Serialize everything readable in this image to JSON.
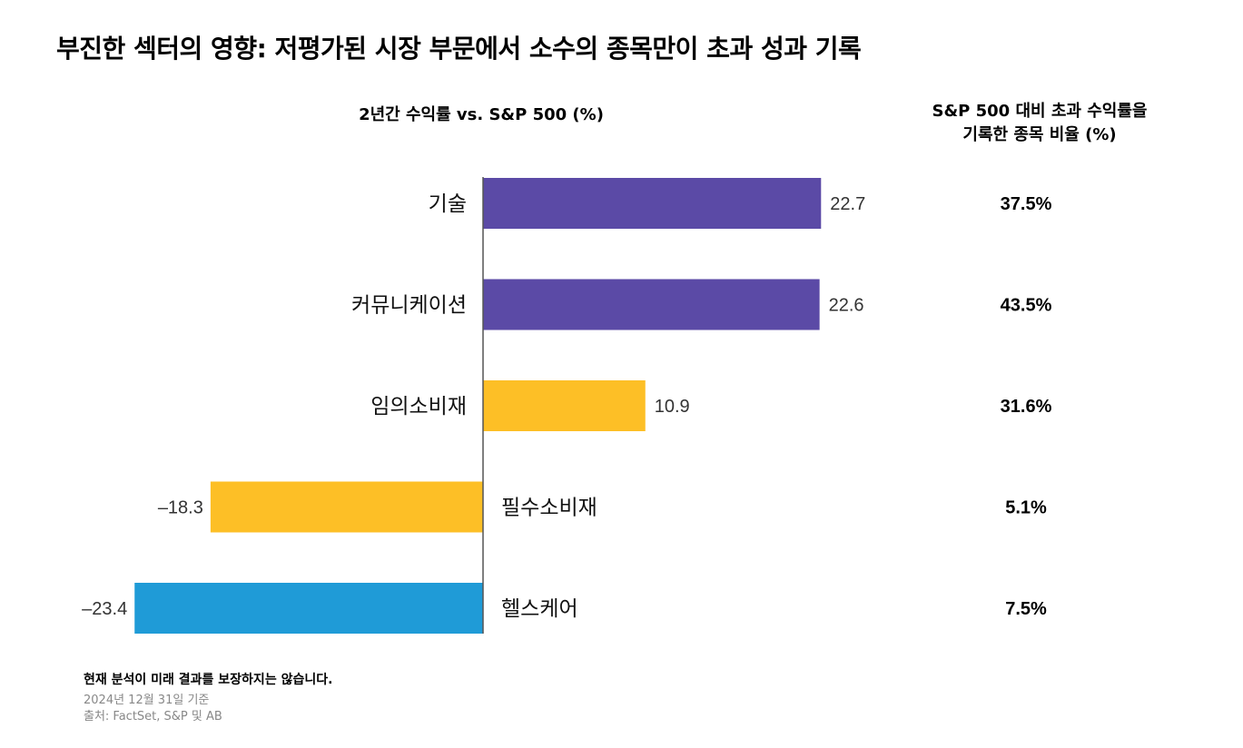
{
  "title": "부진한 섹터의 영향: 저평가된 시장 부문에서 소수의 종목만이 초과 성과 기록",
  "footnote": "현재 분석이 미래 결과를 보장하지는 않습니다.",
  "as_of": "2024년 12월 31일 기준",
  "source": "출처: FactSet, S&P 및 AB",
  "colors": {
    "purple": "#5b4aa6",
    "yellow": "#fdbf26",
    "blue": "#1f9bd7",
    "axis": "#555555"
  },
  "chart_data": {
    "type": "bar",
    "orientation": "horizontal",
    "title": "2년간 수익률 vs. S&P 500 (%)",
    "secondary_column_title": "S&P 500 대비 초과 수익률을 기록한 종목 비율 (%)",
    "secondary_column_title_lines": [
      "S&P 500 대비 초과 수익률을",
      "기록한 종목 비율 (%)"
    ],
    "categories": [
      "기술",
      "커뮤니케이션",
      "임의소비재",
      "필수소비재",
      "헬스케어"
    ],
    "values": [
      22.7,
      22.6,
      10.9,
      -18.3,
      -23.4
    ],
    "value_labels": [
      "22.7",
      "22.6",
      "10.9",
      "–18.3",
      "–23.4"
    ],
    "bar_colors": [
      "#5b4aa6",
      "#5b4aa6",
      "#fdbf26",
      "#fdbf26",
      "#1f9bd7"
    ],
    "share_outperforming": [
      "37.5%",
      "43.5%",
      "31.6%",
      "5.1%",
      "7.5%"
    ],
    "xlim": [
      -23.4,
      22.7
    ],
    "grid": false,
    "legend": "none"
  }
}
